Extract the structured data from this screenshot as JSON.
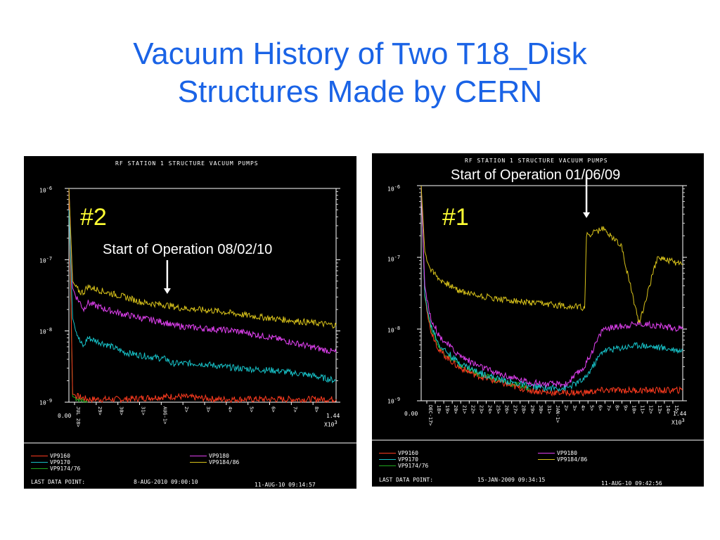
{
  "title_line1": "Vacuum History of Two T18_Disk",
  "title_line2": "Structures Made by CERN",
  "panels": [
    {
      "chart_title": "RF STATION 1 STRUCTURE VACUUM PUMPS",
      "big_label": "#2",
      "annotation": "Start of Operation 08/02/10",
      "y_ticks": [
        "10",
        "10",
        "10",
        "10"
      ],
      "y_exps": [
        "-6",
        "-7",
        "-8",
        "-9"
      ],
      "x_start": "0.00",
      "x_end": "1.44",
      "x_mult": "X10",
      "x_mult_exp": "3",
      "x_ticks": [
        "JUL 28>",
        "29>",
        "30>",
        "31>",
        "AUG-1>",
        "2>",
        "3>",
        "4>",
        "5>",
        "6>",
        "7>",
        "8>"
      ],
      "legend": [
        {
          "name": "VP9160",
          "color": "#ff3b1f"
        },
        {
          "name": "VP9170",
          "color": "#17c2c8"
        },
        {
          "name": "VP9174/76",
          "color": "#1fa81f"
        },
        {
          "name": "VP9180",
          "color": "#e040f0"
        },
        {
          "name": "VP9184/86",
          "color": "#d8c21a"
        }
      ],
      "last_data_label": "LAST DATA POINT:",
      "last_data_value": "8-AUG-2010 09:00:10",
      "timestamp": "11-AUG-10 09:14:57"
    },
    {
      "chart_title": "RF STATION 1 STRUCTURE VACUUM PUMPS",
      "big_label": "#1",
      "annotation": "Start of Operation 01/06/09",
      "y_ticks": [
        "10",
        "10",
        "10",
        "10"
      ],
      "y_exps": [
        "-6",
        "-7",
        "-8",
        "-9"
      ],
      "x_start": "0.00",
      "x_end": "1.44",
      "x_mult": "X10",
      "x_mult_exp": "3",
      "x_ticks": [
        "DEC-17>",
        "18>",
        "19>",
        "20>",
        "21>",
        "22>",
        "23>",
        "24>",
        "25>",
        "26>",
        "27>",
        "28>",
        "29>",
        "30>",
        "31>",
        "JAN-1>",
        "2>",
        "3>",
        "4>",
        "5>",
        "6>",
        "7>",
        "8>",
        "9>",
        "10>",
        "11>",
        "12>",
        "13>",
        "14>",
        "15>"
      ],
      "legend": [
        {
          "name": "VP9160",
          "color": "#ff3b1f"
        },
        {
          "name": "VP9170",
          "color": "#17c2c8"
        },
        {
          "name": "VP9174/76",
          "color": "#1fa81f"
        },
        {
          "name": "VP9180",
          "color": "#e040f0"
        },
        {
          "name": "VP9184/86",
          "color": "#d8c21a"
        }
      ],
      "last_data_label": "LAST DATA POINT:",
      "last_data_value": "15-JAN-2009 09:34:15",
      "timestamp": "11-AUG-10 09:42:56"
    }
  ],
  "chart_data": [
    {
      "type": "line",
      "title": "RF STATION 1 STRUCTURE VACUUM PUMPS",
      "y_scale": "log",
      "ylim": [
        1e-09,
        1e-06
      ],
      "xlim": [
        0,
        1.44
      ],
      "x_unit": "X10^3",
      "event_x": 0.53,
      "series": [
        {
          "name": "VP9160",
          "color": "#ff3b1f",
          "x": [
            0,
            0.02,
            0.05,
            0.1,
            0.3,
            0.53,
            0.6,
            0.8,
            1.0,
            1.2,
            1.44
          ],
          "y": [
            1e-06,
            1.3e-09,
            1.2e-09,
            1.1e-09,
            1.1e-09,
            1.2e-09,
            1.2e-09,
            1.1e-09,
            1.1e-09,
            1.1e-09,
            1.1e-09
          ]
        },
        {
          "name": "VP9170",
          "color": "#17c2c8",
          "x": [
            0,
            0.02,
            0.04,
            0.06,
            0.08,
            0.1,
            0.2,
            0.3,
            0.4,
            0.53,
            0.55,
            0.7,
            0.9,
            1.1,
            1.3,
            1.44
          ],
          "y": [
            5e-07,
            1.5e-08,
            1e-08,
            7e-09,
            6e-09,
            8e-09,
            6.5e-09,
            5e-09,
            4.5e-09,
            4e-09,
            3.5e-09,
            3.5e-09,
            3e-09,
            2.8e-09,
            2.4e-09,
            2e-09
          ]
        },
        {
          "name": "VP9174/76",
          "color": "#1fa81f",
          "x": [
            0,
            0.02,
            0.05,
            0.1
          ],
          "y": [
            1e-06,
            1.2e-09,
            1.1e-09,
            1e-09
          ]
        },
        {
          "name": "VP9180",
          "color": "#e040f0",
          "x": [
            0,
            0.02,
            0.04,
            0.06,
            0.08,
            0.1,
            0.2,
            0.3,
            0.4,
            0.53,
            0.55,
            0.7,
            0.9,
            1.1,
            1.3,
            1.44
          ],
          "y": [
            1e-06,
            4e-08,
            3e-08,
            2.5e-08,
            2e-08,
            2.5e-08,
            2e-08,
            1.7e-08,
            1.5e-08,
            1.3e-08,
            1.2e-08,
            1.1e-08,
            1e-08,
            8e-09,
            6e-09,
            5e-09
          ]
        },
        {
          "name": "VP9184/86",
          "color": "#d8c21a",
          "x": [
            0,
            0.02,
            0.04,
            0.06,
            0.08,
            0.1,
            0.2,
            0.3,
            0.4,
            0.53,
            0.6,
            0.8,
            1.0,
            1.2,
            1.44
          ],
          "y": [
            1e-06,
            5e-08,
            4e-08,
            3.5e-08,
            3.5e-08,
            4.2e-08,
            3.5e-08,
            3e-08,
            2.5e-08,
            2.3e-08,
            2.1e-08,
            1.9e-08,
            1.6e-08,
            1.4e-08,
            1.2e-08
          ]
        }
      ]
    },
    {
      "type": "line",
      "title": "RF STATION 1 STRUCTURE VACUUM PUMPS",
      "y_scale": "log",
      "ylim": [
        1e-09,
        1e-06
      ],
      "xlim": [
        0,
        1.44
      ],
      "x_unit": "X10^3",
      "event_x": 0.91,
      "series": [
        {
          "name": "VP9160",
          "color": "#ff3b1f",
          "x": [
            0,
            0.02,
            0.05,
            0.1,
            0.2,
            0.3,
            0.4,
            0.5,
            0.6,
            0.7,
            0.8,
            0.9,
            1.0,
            1.2,
            1.44
          ],
          "y": [
            1e-06,
            3e-08,
            1e-08,
            5e-09,
            3e-09,
            2.3e-09,
            1.9e-09,
            1.6e-09,
            1.4e-09,
            1.3e-09,
            1.3e-09,
            1.3e-09,
            1.4e-09,
            1.4e-09,
            1.4e-09
          ]
        },
        {
          "name": "VP9170",
          "color": "#17c2c8",
          "x": [
            0,
            0.02,
            0.05,
            0.1,
            0.2,
            0.3,
            0.4,
            0.5,
            0.6,
            0.7,
            0.8,
            0.9,
            1.0,
            1.2,
            1.44
          ],
          "y": [
            1e-06,
            3e-08,
            1.2e-08,
            6e-09,
            3.5e-09,
            2.6e-09,
            2.1e-09,
            1.8e-09,
            1.6e-09,
            1.5e-09,
            1.5e-09,
            2e-09,
            5e-09,
            6e-09,
            5e-09
          ]
        },
        {
          "name": "VP9174/76",
          "color": "#1fa81f",
          "x": [
            0,
            0.02,
            0.05,
            0.1,
            0.2,
            0.3,
            0.4,
            0.5,
            0.6
          ],
          "y": [
            1e-06,
            2.8e-08,
            1.1e-08,
            5.5e-09,
            3.2e-09,
            2.4e-09,
            2e-09,
            1.7e-09,
            1.5e-09
          ]
        },
        {
          "name": "VP9180",
          "color": "#e040f0",
          "x": [
            0,
            0.02,
            0.05,
            0.1,
            0.2,
            0.3,
            0.4,
            0.5,
            0.6,
            0.7,
            0.8,
            0.9,
            1.0,
            1.2,
            1.44
          ],
          "y": [
            1e-06,
            4e-08,
            1.5e-08,
            8e-09,
            4.5e-09,
            3.2e-09,
            2.5e-09,
            2.1e-09,
            1.8e-09,
            1.7e-09,
            1.7e-09,
            3e-09,
            1e-08,
            1.2e-08,
            1e-08
          ]
        },
        {
          "name": "VP9184/86",
          "color": "#d8c21a",
          "x": [
            0,
            0.02,
            0.05,
            0.1,
            0.2,
            0.3,
            0.4,
            0.5,
            0.6,
            0.7,
            0.8,
            0.9,
            0.91,
            1.0,
            1.1,
            1.2,
            1.3,
            1.44
          ],
          "y": [
            1e-06,
            1.2e-07,
            7e-08,
            5e-08,
            3.5e-08,
            3e-08,
            2.7e-08,
            2.5e-08,
            2.3e-08,
            2.2e-08,
            2.1e-08,
            2e-08,
            2e-07,
            2.5e-07,
            1.5e-07,
            1.2e-08,
            1e-07,
            8e-08
          ]
        }
      ]
    }
  ]
}
